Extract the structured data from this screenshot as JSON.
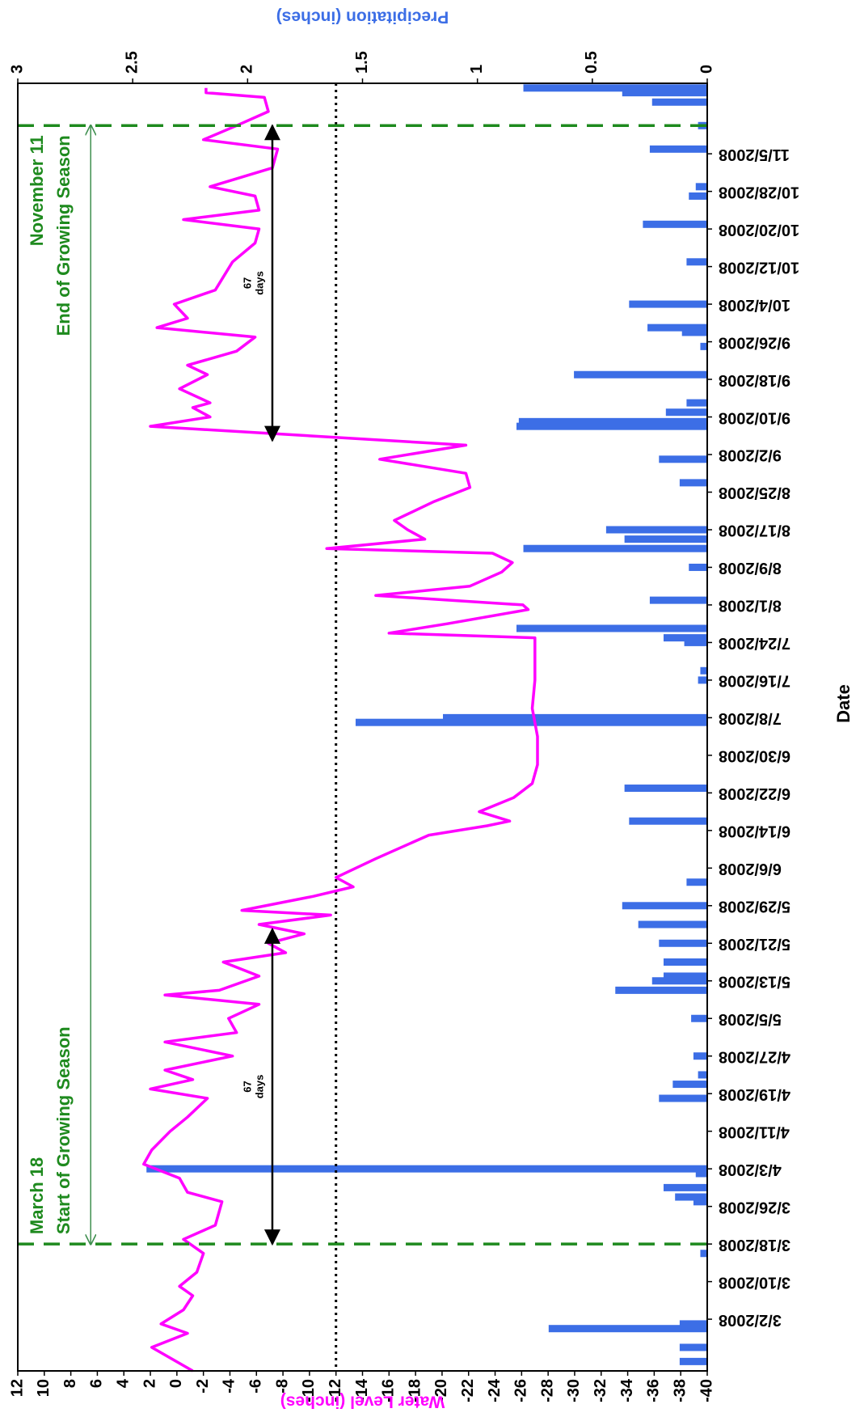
{
  "chart_data": {
    "type": "combo",
    "xlabel": "Date",
    "ylabel": "Water Level (inches)",
    "y2label": "Precipitation (inches)",
    "xlim": [
      "2008-02-20",
      "2008-11-20"
    ],
    "xticks": [
      {
        "value": "2008-03-02",
        "label": "3/2/2008"
      },
      {
        "value": "2008-03-10",
        "label": "3/10/2008"
      },
      {
        "value": "2008-03-18",
        "label": "3/18/2008"
      },
      {
        "value": "2008-03-26",
        "label": "3/26/2008"
      },
      {
        "value": "2008-04-03",
        "label": "4/3/2008"
      },
      {
        "value": "2008-04-11",
        "label": "4/11/2008"
      },
      {
        "value": "2008-04-19",
        "label": "4/19/2008"
      },
      {
        "value": "2008-04-27",
        "label": "4/27/2008"
      },
      {
        "value": "2008-05-05",
        "label": "5/5/2008"
      },
      {
        "value": "2008-05-13",
        "label": "5/13/2008"
      },
      {
        "value": "2008-05-21",
        "label": "5/21/2008"
      },
      {
        "value": "2008-05-29",
        "label": "5/29/2008"
      },
      {
        "value": "2008-06-06",
        "label": "6/6/2008"
      },
      {
        "value": "2008-06-14",
        "label": "6/14/2008"
      },
      {
        "value": "2008-06-22",
        "label": "6/22/2008"
      },
      {
        "value": "2008-06-30",
        "label": "6/30/2008"
      },
      {
        "value": "2008-07-08",
        "label": "7/8/2008"
      },
      {
        "value": "2008-07-16",
        "label": "7/16/2008"
      },
      {
        "value": "2008-07-24",
        "label": "7/24/2008"
      },
      {
        "value": "2008-08-01",
        "label": "8/1/2008"
      },
      {
        "value": "2008-08-09",
        "label": "8/9/2008"
      },
      {
        "value": "2008-08-17",
        "label": "8/17/2008"
      },
      {
        "value": "2008-08-25",
        "label": "8/25/2008"
      },
      {
        "value": "2008-09-02",
        "label": "9/2/2008"
      },
      {
        "value": "2008-09-10",
        "label": "9/10/2008"
      },
      {
        "value": "2008-09-18",
        "label": "9/18/2008"
      },
      {
        "value": "2008-09-26",
        "label": "9/26/2008"
      },
      {
        "value": "2008-10-04",
        "label": "10/4/2008"
      },
      {
        "value": "2008-10-12",
        "label": "10/12/2008"
      },
      {
        "value": "2008-10-20",
        "label": "10/20/2008"
      },
      {
        "value": "2008-10-28",
        "label": "10/28/2008"
      },
      {
        "value": "2008-11-05",
        "label": "11/5/2008"
      }
    ],
    "ylim": [
      -40,
      12
    ],
    "yticks": [
      -40,
      -38,
      -36,
      -34,
      -32,
      -30,
      -28,
      -26,
      -24,
      -22,
      -20,
      -18,
      -16,
      -14,
      -12,
      -10,
      -8,
      -6,
      -4,
      -2,
      0,
      2,
      4,
      6,
      8,
      10,
      12
    ],
    "y2lim": [
      0,
      3
    ],
    "y2ticks": [
      0,
      0.5,
      1,
      1.5,
      2,
      2.5,
      3
    ],
    "series": [
      {
        "type": "line",
        "color": "#ff00ff",
        "axis": "y",
        "x": [
          "2008-02-20",
          "2008-02-25",
          "2008-02-28",
          "2008-03-01",
          "2008-03-04",
          "2008-03-07",
          "2008-03-09",
          "2008-03-12",
          "2008-03-16",
          "2008-03-19",
          "2008-03-22",
          "2008-03-27",
          "2008-03-29",
          "2008-04-01",
          "2008-04-04",
          "2008-04-07",
          "2008-04-11",
          "2008-04-14",
          "2008-04-18",
          "2008-04-20",
          "2008-04-22",
          "2008-04-24",
          "2008-04-27",
          "2008-04-30",
          "2008-05-02",
          "2008-05-05",
          "2008-05-08",
          "2008-05-10",
          "2008-05-11",
          "2008-05-14",
          "2008-05-17",
          "2008-05-19",
          "2008-05-21",
          "2008-05-23",
          "2008-05-25",
          "2008-05-27",
          "2008-05-28",
          "2008-05-31",
          "2008-06-02",
          "2008-06-04",
          "2008-06-08",
          "2008-06-13",
          "2008-06-15",
          "2008-06-16",
          "2008-06-18",
          "2008-06-21",
          "2008-06-24",
          "2008-06-28",
          "2008-07-04",
          "2008-07-10",
          "2008-07-16",
          "2008-07-22",
          "2008-07-25",
          "2008-07-26",
          "2008-07-28",
          "2008-07-31",
          "2008-08-01",
          "2008-08-03",
          "2008-08-05",
          "2008-08-08",
          "2008-08-10",
          "2008-08-12",
          "2008-08-13",
          "2008-08-15",
          "2008-08-17",
          "2008-08-19",
          "2008-08-23",
          "2008-08-26",
          "2008-08-29",
          "2008-09-01",
          "2008-09-04",
          "2008-09-08",
          "2008-09-10",
          "2008-09-12",
          "2008-09-13",
          "2008-09-16",
          "2008-09-19",
          "2008-09-21",
          "2008-09-24",
          "2008-09-27",
          "2008-09-29",
          "2008-10-01",
          "2008-10-04",
          "2008-10-07",
          "2008-10-13",
          "2008-10-17",
          "2008-10-20",
          "2008-10-22",
          "2008-10-24",
          "2008-10-27",
          "2008-10-29",
          "2008-11-02",
          "2008-11-06",
          "2008-11-08",
          "2008-11-11",
          "2008-11-14",
          "2008-11-17",
          "2008-11-18",
          "2008-11-19"
        ],
        "values": [
          -1.2,
          1.9,
          -0.8,
          1.2,
          -0.5,
          -1.2,
          -0.2,
          -1.5,
          -2,
          -0.5,
          -2.9,
          -3.4,
          -0.8,
          -0.2,
          2.5,
          1.9,
          0.5,
          -0.8,
          -2.3,
          2,
          -1.2,
          0.9,
          -4.2,
          0.9,
          -4.5,
          -3.9,
          -6.2,
          0.9,
          -3.2,
          -6.2,
          -3.5,
          -8.2,
          -6.9,
          -9.6,
          -6.2,
          -11.6,
          -4.9,
          -10.3,
          -13.3,
          -12,
          -15,
          -19,
          -23.4,
          -25.1,
          -22.8,
          -25.4,
          -26.8,
          -27.2,
          -27.2,
          -26.8,
          -27,
          -27,
          -27,
          -16,
          -20.4,
          -26.5,
          -26.1,
          -15,
          -22.1,
          -24.5,
          -25.3,
          -23.8,
          -11.3,
          -18.7,
          -17.4,
          -16.4,
          -19.4,
          -22.1,
          -21.8,
          -15.3,
          -21.8,
          2,
          -2.5,
          -1.2,
          -2.5,
          -0.2,
          -2.3,
          -0.8,
          -4.5,
          -5.9,
          1.5,
          -0.8,
          0.2,
          -2.9,
          -4.2,
          -5.9,
          -6.2,
          -0.5,
          -6.2,
          -5.9,
          -2.5,
          -7.2,
          -7.6,
          -2,
          -4.5,
          -6.9,
          -6.6,
          -2.2,
          -2.2
        ]
      },
      {
        "type": "bar",
        "color": "#3c6ee6",
        "axis": "y2",
        "x": [
          "2008-02-22",
          "2008-02-25",
          "2008-02-29",
          "2008-03-01",
          "2008-03-16",
          "2008-03-27",
          "2008-03-28",
          "2008-03-30",
          "2008-04-02",
          "2008-04-03",
          "2008-04-18",
          "2008-04-21",
          "2008-04-23",
          "2008-04-27",
          "2008-05-05",
          "2008-05-11",
          "2008-05-13",
          "2008-05-14",
          "2008-05-17",
          "2008-05-21",
          "2008-05-25",
          "2008-05-29",
          "2008-06-03",
          "2008-06-16",
          "2008-06-23",
          "2008-07-07",
          "2008-07-08",
          "2008-07-16",
          "2008-07-18",
          "2008-07-24",
          "2008-07-25",
          "2008-07-27",
          "2008-08-02",
          "2008-08-09",
          "2008-08-13",
          "2008-08-15",
          "2008-08-17",
          "2008-08-27",
          "2008-09-01",
          "2008-09-08",
          "2008-09-09",
          "2008-09-11",
          "2008-09-13",
          "2008-09-19",
          "2008-09-25",
          "2008-09-28",
          "2008-09-29",
          "2008-10-04",
          "2008-10-13",
          "2008-10-21",
          "2008-10-27",
          "2008-10-29",
          "2008-11-06",
          "2008-11-11",
          "2008-11-16",
          "2008-11-18",
          "2008-11-19"
        ],
        "values": [
          0.12,
          0.12,
          0.69,
          0.12,
          0.03,
          0.06,
          0.14,
          0.19,
          0.05,
          2.44,
          0.21,
          0.15,
          0.04,
          0.06,
          0.07,
          0.4,
          0.24,
          0.19,
          0.19,
          0.21,
          0.3,
          0.37,
          0.09,
          0.34,
          0.36,
          1.53,
          1.15,
          0.04,
          0.03,
          0.1,
          0.19,
          0.83,
          0.25,
          0.08,
          0.8,
          0.36,
          0.44,
          0.12,
          0.21,
          0.83,
          0.82,
          0.18,
          0.09,
          0.58,
          0.03,
          0.11,
          0.26,
          0.34,
          0.09,
          0.28,
          0.08,
          0.05,
          0.25,
          0.04,
          0.24,
          0.37,
          0.8
        ]
      }
    ],
    "reference_line": {
      "y": -12,
      "color": "#000000"
    },
    "season_lines": [
      {
        "x": "2008-03-18",
        "color": "#1e8a1e",
        "label": [
          "March 18",
          "Start of Growing Season"
        ]
      },
      {
        "x": "2008-11-11",
        "color": "#1e8a1e",
        "label": [
          "November 11",
          "End of Growing Season"
        ]
      }
    ],
    "arrows": [
      {
        "x": [
          "2008-03-18",
          "2008-11-11"
        ],
        "y": 6.5,
        "color": "#3f8f4f"
      },
      {
        "x": [
          "2008-03-18",
          "2008-05-24"
        ],
        "y": -7.2,
        "color": "#000000",
        "label": [
          "67",
          "days"
        ]
      },
      {
        "x": [
          "2008-09-05",
          "2008-11-11"
        ],
        "y": -7.2,
        "color": "#000000",
        "label": [
          "67",
          "days"
        ]
      }
    ]
  }
}
